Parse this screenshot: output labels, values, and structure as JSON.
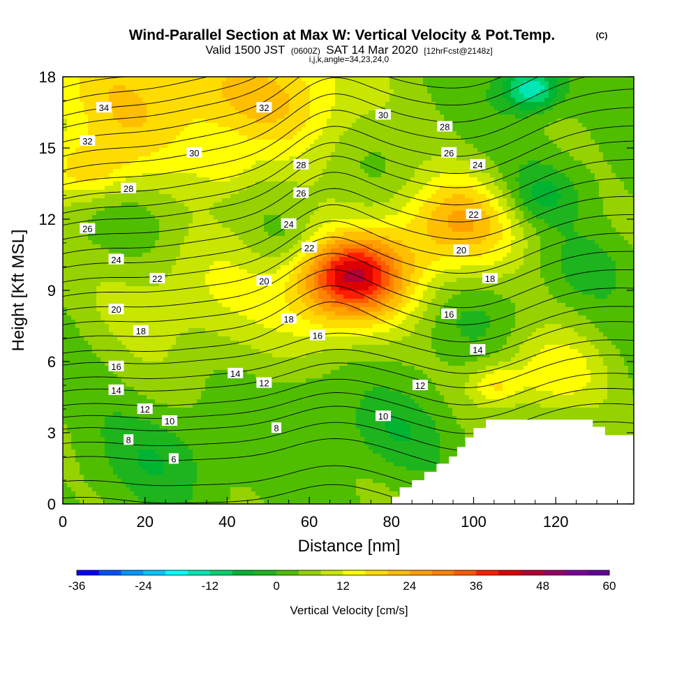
{
  "title": {
    "main": "Wind-Parallel Section at Max W: Vertical Velocity & Pot.Temp.",
    "copyright": "(C)",
    "valid_prefix": "Valid 1500 JST",
    "valid_utc": "(0600Z)",
    "valid_date": "SAT 14 Mar 2020",
    "forecast": "[12hrFcst@2148z]",
    "indices": "i,j,k,angle=34,23,24,0"
  },
  "chart_data": {
    "type": "heatmap",
    "title": "Wind-Parallel Section at Max W: Vertical Velocity & Pot.Temp.",
    "xlabel": "Distance [nm]",
    "ylabel": "Height [Kft MSL]",
    "xlim": [
      0,
      139
    ],
    "ylim": [
      0,
      18
    ],
    "x_ticks": [
      0,
      20,
      40,
      60,
      80,
      100,
      120
    ],
    "y_ticks": [
      0,
      3,
      6,
      9,
      12,
      15,
      18
    ],
    "colorbar": {
      "title": "Vertical Velocity [cm/s]",
      "min": -36,
      "max": 60,
      "step": 4,
      "tick_values": [
        -36,
        -24,
        -12,
        0,
        12,
        24,
        36,
        48,
        60
      ],
      "tick_labels": [
        "-36",
        "-24",
        "-12",
        "0",
        "12",
        "24",
        "36",
        "48",
        "60"
      ],
      "colors": [
        "#0000ff",
        "#0050ff",
        "#0096ff",
        "#00c8ff",
        "#00ffff",
        "#00e6b4",
        "#00d26e",
        "#00b432",
        "#1eb41e",
        "#50be00",
        "#96d200",
        "#c8e600",
        "#ffff00",
        "#ffdc00",
        "#ffbe00",
        "#ffa000",
        "#ff8200",
        "#ff5a00",
        "#ff1e00",
        "#dc0000",
        "#b40032",
        "#960064",
        "#780096",
        "#640096"
      ]
    },
    "velocity_blobs": [
      {
        "x": 70,
        "y": 9.8,
        "w": 12,
        "peak": 26
      },
      {
        "x": 68,
        "y": 8.5,
        "w": 15,
        "peak": 14
      },
      {
        "x": 18,
        "y": 17.0,
        "w": 28,
        "peak": 16
      },
      {
        "x": 55,
        "y": 17.2,
        "w": 20,
        "peak": 14
      },
      {
        "x": 97,
        "y": 12.0,
        "w": 15,
        "peak": 18
      },
      {
        "x": 6,
        "y": 14.0,
        "w": 10,
        "peak": 12
      },
      {
        "x": 32,
        "y": 9.0,
        "w": 25,
        "peak": 9
      },
      {
        "x": 118,
        "y": 5.5,
        "w": 14,
        "peak": 12
      },
      {
        "x": 105,
        "y": 5.0,
        "w": 6,
        "peak": 10
      },
      {
        "x": 84,
        "y": 10.0,
        "w": 20,
        "peak": 8
      },
      {
        "x": 40,
        "y": 14.0,
        "w": 8,
        "peak": 6
      },
      {
        "x": 18,
        "y": 12.0,
        "w": 18,
        "peak": -5
      },
      {
        "x": 24,
        "y": 2.0,
        "w": 15,
        "peak": -6
      },
      {
        "x": 80,
        "y": 3.0,
        "w": 12,
        "peak": -6
      },
      {
        "x": 114,
        "y": 17.5,
        "w": 7,
        "peak": -20
      },
      {
        "x": 116,
        "y": 13.0,
        "w": 10,
        "peak": -9
      },
      {
        "x": 96,
        "y": 7.8,
        "w": 15,
        "peak": -5
      },
      {
        "x": 55,
        "y": 11.0,
        "w": 8,
        "peak": -3
      },
      {
        "x": 60,
        "y": 4.5,
        "w": 10,
        "peak": -3
      },
      {
        "x": 128,
        "y": 10.0,
        "w": 10,
        "peak": -4
      }
    ],
    "theta_contours": {
      "interval": 1,
      "base_heights": [
        [
          6,
          0.3
        ],
        [
          7,
          1.0
        ],
        [
          8,
          2.0
        ],
        [
          9,
          2.6
        ],
        [
          10,
          3.2
        ],
        [
          11,
          3.7
        ],
        [
          12,
          4.2
        ],
        [
          13,
          4.8
        ],
        [
          14,
          5.3
        ],
        [
          15,
          5.9
        ],
        [
          16,
          6.4
        ],
        [
          17,
          7.0
        ],
        [
          18,
          7.6
        ],
        [
          19,
          8.2
        ],
        [
          20,
          8.8
        ],
        [
          21,
          9.4
        ],
        [
          22,
          10.0
        ],
        [
          23,
          10.6
        ],
        [
          24,
          11.2
        ],
        [
          25,
          11.8
        ],
        [
          26,
          12.3
        ],
        [
          27,
          12.9
        ],
        [
          28,
          13.5
        ],
        [
          29,
          14.1
        ],
        [
          30,
          14.7
        ],
        [
          31,
          15.3
        ],
        [
          32,
          15.9
        ],
        [
          33,
          16.4
        ],
        [
          34,
          17.0
        ],
        [
          35,
          17.6
        ]
      ]
    },
    "contour_labels": [
      {
        "text": "34",
        "x": 10,
        "y": 16.7
      },
      {
        "text": "32",
        "x": 49,
        "y": 16.7
      },
      {
        "text": "30",
        "x": 78,
        "y": 16.4
      },
      {
        "text": "32",
        "x": 6,
        "y": 15.3
      },
      {
        "text": "30",
        "x": 32,
        "y": 14.8
      },
      {
        "text": "28",
        "x": 93,
        "y": 15.9
      },
      {
        "text": "28",
        "x": 58,
        "y": 14.3
      },
      {
        "text": "26",
        "x": 94,
        "y": 14.8
      },
      {
        "text": "24",
        "x": 101,
        "y": 14.3
      },
      {
        "text": "28",
        "x": 16,
        "y": 13.3
      },
      {
        "text": "26",
        "x": 58,
        "y": 13.1
      },
      {
        "text": "22",
        "x": 100,
        "y": 12.2
      },
      {
        "text": "24",
        "x": 55,
        "y": 11.8
      },
      {
        "text": "26",
        "x": 6,
        "y": 11.6
      },
      {
        "text": "22",
        "x": 60,
        "y": 10.8
      },
      {
        "text": "20",
        "x": 97,
        "y": 10.7
      },
      {
        "text": "24",
        "x": 13,
        "y": 10.3
      },
      {
        "text": "18",
        "x": 104,
        "y": 9.5
      },
      {
        "text": "22",
        "x": 23,
        "y": 9.5
      },
      {
        "text": "20",
        "x": 49,
        "y": 9.4
      },
      {
        "text": "20",
        "x": 13,
        "y": 8.2
      },
      {
        "text": "16",
        "x": 94,
        "y": 8.0
      },
      {
        "text": "18",
        "x": 55,
        "y": 7.8
      },
      {
        "text": "18",
        "x": 19,
        "y": 7.3
      },
      {
        "text": "16",
        "x": 62,
        "y": 7.1
      },
      {
        "text": "14",
        "x": 101,
        "y": 6.5
      },
      {
        "text": "16",
        "x": 13,
        "y": 5.8
      },
      {
        "text": "14",
        "x": 42,
        "y": 5.5
      },
      {
        "text": "12",
        "x": 49,
        "y": 5.1
      },
      {
        "text": "14",
        "x": 13,
        "y": 4.8
      },
      {
        "text": "12",
        "x": 87,
        "y": 5.0
      },
      {
        "text": "12",
        "x": 20,
        "y": 4.0
      },
      {
        "text": "10",
        "x": 26,
        "y": 3.5
      },
      {
        "text": "10",
        "x": 78,
        "y": 3.7
      },
      {
        "text": "8",
        "x": 52,
        "y": 3.2
      },
      {
        "text": "8",
        "x": 16,
        "y": 2.7
      },
      {
        "text": "6",
        "x": 27,
        "y": 1.9
      }
    ],
    "terrain_mask": [
      [
        80,
        0
      ],
      [
        80,
        0.3
      ],
      [
        82,
        0.3
      ],
      [
        82,
        0.7
      ],
      [
        85,
        0.7
      ],
      [
        85,
        1.0
      ],
      [
        88,
        1.0
      ],
      [
        88,
        1.35
      ],
      [
        91,
        1.35
      ],
      [
        91,
        1.7
      ],
      [
        94,
        1.7
      ],
      [
        94,
        2.0
      ],
      [
        96,
        2.0
      ],
      [
        96,
        2.4
      ],
      [
        98,
        2.4
      ],
      [
        98,
        2.8
      ],
      [
        100,
        2.8
      ],
      [
        100,
        3.2
      ],
      [
        103,
        3.2
      ],
      [
        103,
        3.55
      ],
      [
        129,
        3.55
      ],
      [
        129,
        3.25
      ],
      [
        132,
        3.25
      ],
      [
        132,
        2.9
      ],
      [
        139,
        2.9
      ],
      [
        139,
        0
      ]
    ]
  }
}
